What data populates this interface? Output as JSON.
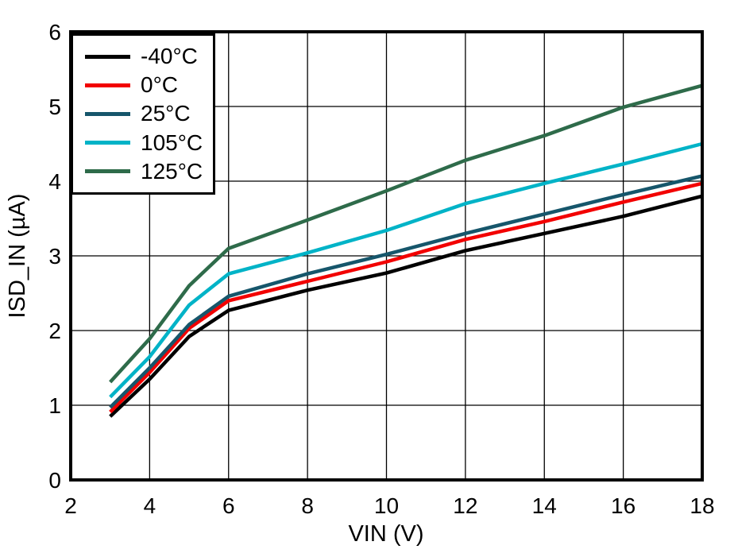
{
  "chart_data": {
    "type": "line",
    "title": "",
    "xlabel": "VIN (V)",
    "ylabel": "ISD_IN (µA)",
    "xlim": [
      2,
      18
    ],
    "ylim": [
      0,
      6
    ],
    "xticks": [
      2,
      4,
      6,
      8,
      10,
      12,
      14,
      16,
      18
    ],
    "yticks": [
      0,
      1,
      2,
      3,
      4,
      5,
      6
    ],
    "grid": true,
    "legend_position": "top-left",
    "frame_color": "#000000",
    "grid_color": "#000000",
    "background_color": "#ffffff",
    "x": [
      3,
      4,
      5,
      6,
      8,
      10,
      12,
      14,
      16,
      18
    ],
    "series": [
      {
        "name": "-40°C",
        "color": "#000000",
        "values": [
          0.85,
          1.35,
          1.92,
          2.27,
          2.54,
          2.77,
          3.07,
          3.3,
          3.53,
          3.8
        ]
      },
      {
        "name": "0°C",
        "color": "#F20000",
        "values": [
          0.91,
          1.44,
          2.03,
          2.4,
          2.66,
          2.92,
          3.22,
          3.46,
          3.72,
          3.97
        ]
      },
      {
        "name": "25°C",
        "color": "#16566B",
        "values": [
          0.97,
          1.5,
          2.08,
          2.46,
          2.76,
          3.02,
          3.3,
          3.56,
          3.82,
          4.07
        ]
      },
      {
        "name": "105°C",
        "color": "#00B3C7",
        "values": [
          1.11,
          1.65,
          2.34,
          2.76,
          3.04,
          3.34,
          3.7,
          3.97,
          4.23,
          4.5
        ]
      },
      {
        "name": "125°C",
        "color": "#2E6B4A",
        "values": [
          1.31,
          1.89,
          2.6,
          3.1,
          3.48,
          3.87,
          4.28,
          4.61,
          4.99,
          5.28
        ]
      }
    ]
  }
}
